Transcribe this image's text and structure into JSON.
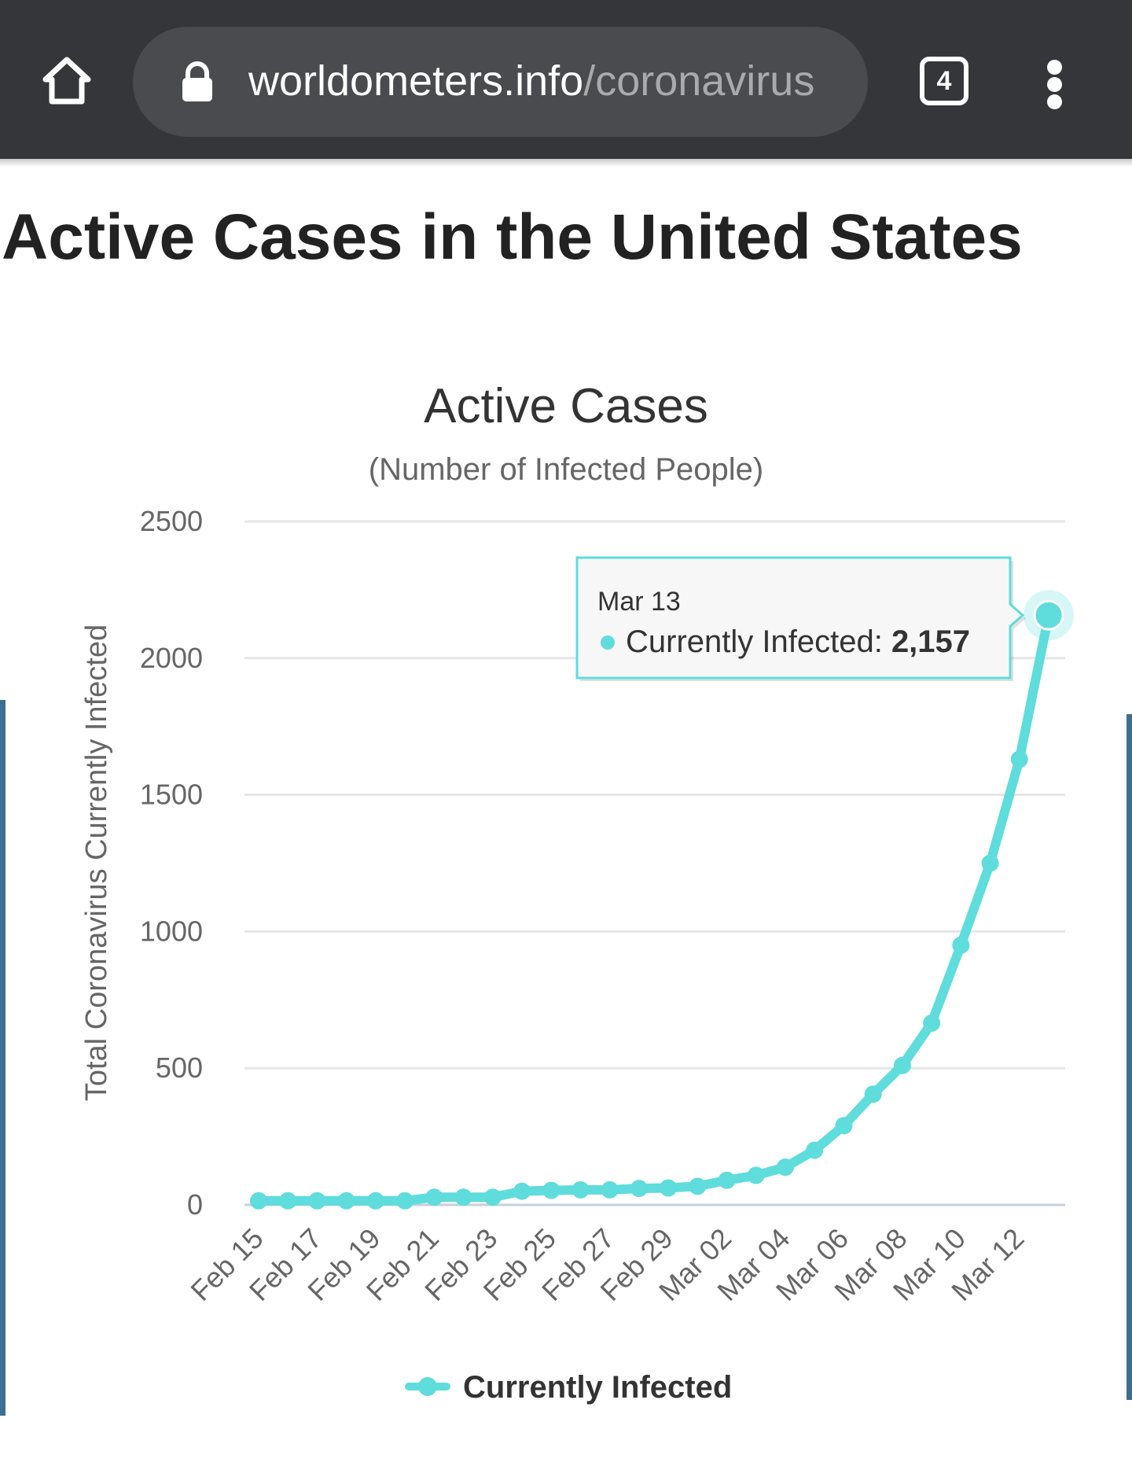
{
  "browser": {
    "url_domain": "worldometers.info",
    "url_path": "/coronavirus",
    "tab_count": "4",
    "home_icon": "home-icon",
    "lock_icon": "lock-icon",
    "menu_icon": "more-vert-icon"
  },
  "page": {
    "title": "Active Cases in the United States"
  },
  "colors": {
    "series": "#5fdcdc",
    "topbar": "#35363a",
    "accent_edge": "#3c6e8f"
  },
  "chart_data": {
    "type": "line",
    "title": "Active Cases",
    "subtitle": "(Number of Infected People)",
    "ylabel": "Total Coronavirus Currently Infected",
    "xlabel": "",
    "ylim": [
      0,
      2500
    ],
    "yticks": [
      0,
      500,
      1000,
      1500,
      2000,
      2500
    ],
    "grid": true,
    "categories": [
      "Feb 15",
      "Feb 16",
      "Feb 17",
      "Feb 18",
      "Feb 19",
      "Feb 20",
      "Feb 21",
      "Feb 22",
      "Feb 23",
      "Feb 24",
      "Feb 25",
      "Feb 26",
      "Feb 27",
      "Feb 28",
      "Feb 29",
      "Mar 01",
      "Mar 02",
      "Mar 03",
      "Mar 04",
      "Mar 05",
      "Mar 06",
      "Mar 07",
      "Mar 08",
      "Mar 09",
      "Mar 10",
      "Mar 11",
      "Mar 12",
      "Mar 13"
    ],
    "xtick_labels": [
      "Feb 15",
      "Feb 17",
      "Feb 19",
      "Feb 21",
      "Feb 23",
      "Feb 25",
      "Feb 27",
      "Feb 29",
      "Mar 02",
      "Mar 04",
      "Mar 06",
      "Mar 08",
      "Mar 10",
      "Mar 12"
    ],
    "series": [
      {
        "name": "Currently Infected",
        "values": [
          15,
          15,
          15,
          15,
          15,
          15,
          28,
          28,
          28,
          50,
          53,
          55,
          55,
          60,
          62,
          68,
          90,
          108,
          138,
          200,
          290,
          405,
          510,
          665,
          950,
          1250,
          1630,
          2157
        ]
      }
    ],
    "legend": {
      "position": "bottom-center",
      "label": "Currently Infected"
    },
    "tooltip": {
      "date": "Mar 13",
      "label": "Currently Infected:",
      "value": "2,157"
    }
  }
}
